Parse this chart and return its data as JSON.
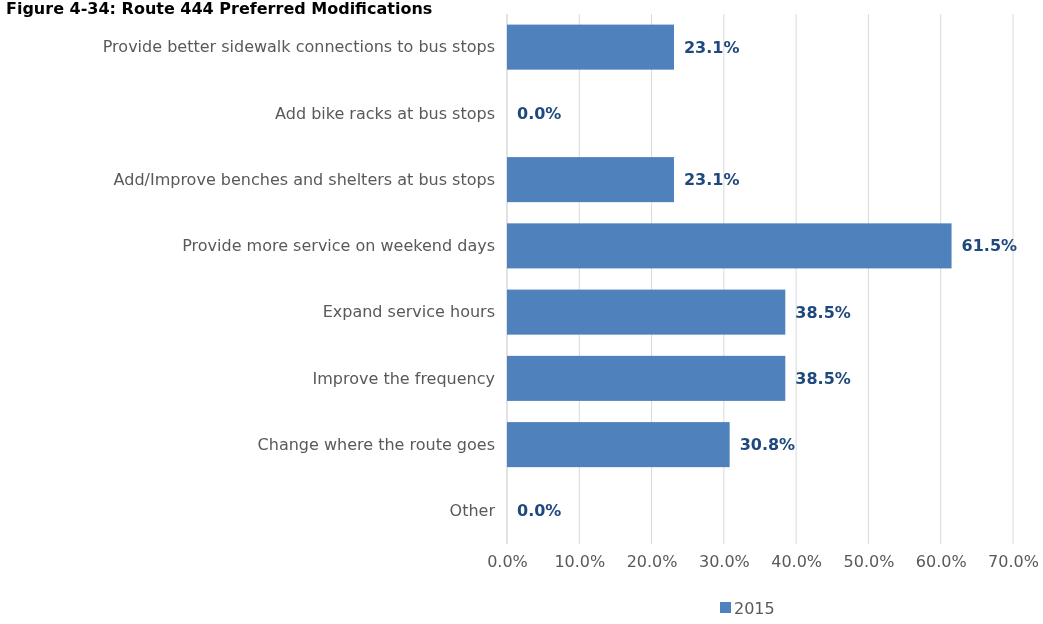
{
  "chart_data": {
    "type": "bar",
    "orientation": "horizontal",
    "title": "Figure 4-34: Route 444 Preferred Modifications",
    "categories": [
      "Provide better sidewalk connections to bus stops",
      "Add bike racks at bus stops",
      "Add/Improve benches and shelters at bus stops",
      "Provide more service on weekend days",
      "Expand service hours",
      "Improve the frequency",
      "Change where the route goes",
      "Other"
    ],
    "series": [
      {
        "name": "2015",
        "color": "#4f81bd",
        "values": [
          23.1,
          0.0,
          23.1,
          61.5,
          38.5,
          38.5,
          30.8,
          0.0
        ],
        "value_labels": [
          "23.1%",
          "0.0%",
          "23.1%",
          "61.5%",
          "38.5%",
          "38.5%",
          "30.8%",
          "0.0%"
        ]
      }
    ],
    "xlim": [
      0,
      70
    ],
    "xticks": [
      {
        "value": 0,
        "label": "0.0%"
      },
      {
        "value": 10,
        "label": "10.0%"
      },
      {
        "value": 20,
        "label": "20.0%"
      },
      {
        "value": 30,
        "label": "30.0%"
      },
      {
        "value": 40,
        "label": "40.0%"
      },
      {
        "value": 50,
        "label": "50.0%"
      },
      {
        "value": 60,
        "label": "60.0%"
      },
      {
        "value": 70,
        "label": "70.0%"
      }
    ],
    "grid": "x",
    "legend": "bottom"
  }
}
